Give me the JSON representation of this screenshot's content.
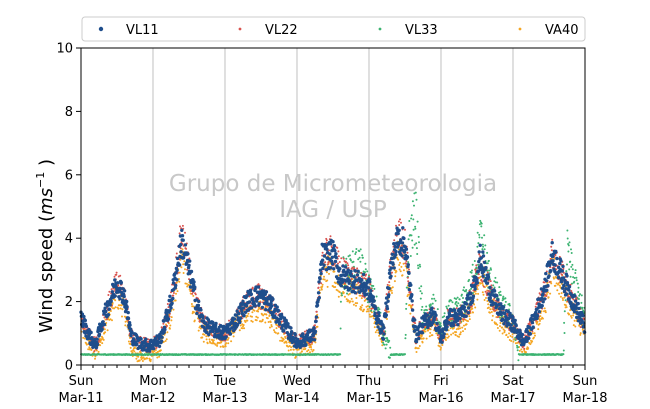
{
  "chart_data": {
    "type": "scatter",
    "title": "",
    "ylabel_main": "Wind speed (",
    "ylabel_math": "ms",
    "ylabel_sup": "−1",
    "ylabel_end": " )",
    "ylim": [
      0,
      10
    ],
    "yticks": [
      "0",
      "2",
      "4",
      "6",
      "8",
      "10"
    ],
    "xlim_days": [
      0,
      7
    ],
    "xticks": [
      {
        "day": "Sun",
        "date": "Mar-11"
      },
      {
        "day": "Mon",
        "date": "Mar-12"
      },
      {
        "day": "Tue",
        "date": "Mar-13"
      },
      {
        "day": "Wed",
        "date": "Mar-14"
      },
      {
        "day": "Thu",
        "date": "Mar-15"
      },
      {
        "day": "Fri",
        "date": "Mar-16"
      },
      {
        "day": "Sat",
        "date": "Mar-17"
      },
      {
        "day": "Sun",
        "date": "Mar-18"
      }
    ],
    "grid": "vertical at day boundaries",
    "legend_position": "top",
    "watermark": [
      "Grupo de Micrometeorologia",
      "IAG / USP"
    ],
    "series": [
      {
        "name": "VL11",
        "color": "#1f4e8c",
        "marker_size": "medium",
        "profile": [
          [
            0.0,
            1.5
          ],
          [
            0.12,
            0.9
          ],
          [
            0.2,
            0.6
          ],
          [
            0.3,
            1.4
          ],
          [
            0.4,
            2.0
          ],
          [
            0.5,
            2.6
          ],
          [
            0.6,
            2.2
          ],
          [
            0.7,
            0.9
          ],
          [
            0.8,
            0.7
          ],
          [
            0.95,
            0.6
          ],
          [
            1.1,
            0.8
          ],
          [
            1.25,
            2.0
          ],
          [
            1.4,
            3.9
          ],
          [
            1.5,
            3.0
          ],
          [
            1.6,
            2.0
          ],
          [
            1.7,
            1.3
          ],
          [
            1.85,
            1.1
          ],
          [
            2.0,
            1.0
          ],
          [
            2.15,
            1.4
          ],
          [
            2.3,
            2.0
          ],
          [
            2.45,
            2.2
          ],
          [
            2.6,
            2.0
          ],
          [
            2.75,
            1.5
          ],
          [
            2.9,
            1.0
          ],
          [
            3.0,
            0.7
          ],
          [
            3.1,
            0.8
          ],
          [
            3.25,
            1.0
          ],
          [
            3.35,
            3.4
          ],
          [
            3.5,
            3.5
          ],
          [
            3.6,
            2.8
          ],
          [
            3.75,
            2.7
          ],
          [
            3.85,
            2.6
          ],
          [
            4.0,
            2.4
          ],
          [
            4.1,
            1.6
          ],
          [
            4.2,
            1.0
          ],
          [
            4.3,
            3.0
          ],
          [
            4.4,
            4.0
          ],
          [
            4.5,
            3.8
          ],
          [
            4.65,
            0.9
          ],
          [
            4.75,
            1.3
          ],
          [
            4.9,
            1.6
          ],
          [
            5.0,
            0.8
          ],
          [
            5.1,
            1.5
          ],
          [
            5.25,
            1.5
          ],
          [
            5.4,
            2.0
          ],
          [
            5.55,
            3.4
          ],
          [
            5.7,
            2.2
          ],
          [
            5.85,
            1.6
          ],
          [
            6.0,
            1.3
          ],
          [
            6.15,
            0.7
          ],
          [
            6.3,
            1.5
          ],
          [
            6.45,
            2.5
          ],
          [
            6.55,
            3.5
          ],
          [
            6.65,
            3.0
          ],
          [
            6.8,
            2.2
          ],
          [
            7.0,
            1.2
          ]
        ],
        "spread": 0.35
      },
      {
        "name": "VL22",
        "color": "#d9534f",
        "marker_size": "small",
        "profile": [
          [
            0.0,
            1.5
          ],
          [
            0.12,
            0.9
          ],
          [
            0.2,
            0.6
          ],
          [
            0.3,
            1.4
          ],
          [
            0.4,
            2.0
          ],
          [
            0.5,
            2.6
          ],
          [
            0.6,
            2.2
          ],
          [
            0.7,
            0.9
          ],
          [
            0.8,
            0.7
          ],
          [
            0.95,
            0.6
          ],
          [
            1.1,
            0.8
          ],
          [
            1.25,
            2.0
          ],
          [
            1.4,
            4.2
          ],
          [
            1.5,
            3.0
          ],
          [
            1.6,
            2.0
          ],
          [
            1.7,
            1.3
          ],
          [
            1.85,
            1.1
          ],
          [
            2.0,
            1.0
          ],
          [
            2.15,
            1.4
          ],
          [
            2.3,
            2.0
          ],
          [
            2.45,
            2.2
          ],
          [
            2.6,
            2.0
          ],
          [
            2.75,
            1.5
          ],
          [
            2.9,
            1.0
          ],
          [
            3.0,
            0.7
          ],
          [
            3.1,
            0.8
          ],
          [
            3.25,
            1.0
          ],
          [
            3.35,
            3.4
          ],
          [
            3.5,
            3.6
          ],
          [
            3.6,
            3.0
          ],
          [
            3.75,
            2.8
          ],
          [
            3.85,
            2.6
          ],
          [
            4.0,
            2.4
          ],
          [
            4.1,
            1.6
          ],
          [
            4.2,
            1.0
          ],
          [
            4.3,
            3.0
          ],
          [
            4.4,
            4.2
          ],
          [
            4.5,
            3.8
          ],
          [
            4.65,
            0.9
          ],
          [
            4.75,
            1.3
          ],
          [
            4.9,
            1.6
          ],
          [
            5.0,
            0.8
          ],
          [
            5.1,
            1.5
          ],
          [
            5.25,
            1.5
          ],
          [
            5.4,
            2.0
          ],
          [
            5.55,
            3.2
          ],
          [
            5.7,
            2.2
          ],
          [
            5.85,
            1.6
          ],
          [
            6.0,
            1.3
          ],
          [
            6.15,
            0.7
          ],
          [
            6.3,
            1.5
          ],
          [
            6.45,
            2.4
          ],
          [
            6.55,
            3.5
          ],
          [
            6.65,
            3.0
          ],
          [
            6.8,
            2.2
          ],
          [
            7.0,
            1.2
          ]
        ],
        "spread": 0.4
      },
      {
        "name": "VL33",
        "color": "#3cb371",
        "marker_size": "small",
        "profile": [
          [
            0.0,
            0.35
          ],
          [
            3.6,
            0.35
          ],
          [
            3.62,
            2.8
          ],
          [
            3.75,
            2.9
          ],
          [
            3.85,
            3.2
          ],
          [
            4.0,
            2.4
          ],
          [
            4.1,
            1.8
          ],
          [
            4.2,
            1.0
          ],
          [
            4.3,
            0.35
          ],
          [
            4.5,
            0.35
          ],
          [
            4.55,
            3.8
          ],
          [
            4.65,
            4.8
          ],
          [
            4.75,
            1.3
          ],
          [
            4.9,
            1.8
          ],
          [
            5.0,
            1.0
          ],
          [
            5.1,
            1.6
          ],
          [
            5.25,
            1.7
          ],
          [
            5.4,
            2.3
          ],
          [
            5.55,
            4.0
          ],
          [
            5.7,
            2.5
          ],
          [
            5.85,
            1.8
          ],
          [
            6.0,
            1.4
          ],
          [
            6.08,
            0.35
          ],
          [
            6.7,
            0.35
          ],
          [
            6.75,
            3.6
          ],
          [
            6.85,
            2.6
          ],
          [
            7.0,
            1.4
          ]
        ],
        "spread": 0.55
      },
      {
        "name": "VA40",
        "color": "#f5a623",
        "marker_size": "small",
        "profile": [
          [
            0.0,
            1.2
          ],
          [
            0.12,
            0.6
          ],
          [
            0.2,
            0.3
          ],
          [
            0.3,
            1.0
          ],
          [
            0.4,
            1.6
          ],
          [
            0.5,
            2.2
          ],
          [
            0.6,
            1.8
          ],
          [
            0.7,
            0.5
          ],
          [
            0.8,
            0.3
          ],
          [
            0.95,
            0.3
          ],
          [
            1.1,
            0.5
          ],
          [
            1.25,
            1.5
          ],
          [
            1.4,
            3.6
          ],
          [
            1.5,
            2.5
          ],
          [
            1.6,
            1.5
          ],
          [
            1.7,
            1.0
          ],
          [
            1.85,
            0.9
          ],
          [
            2.0,
            0.8
          ],
          [
            2.15,
            1.2
          ],
          [
            2.3,
            1.6
          ],
          [
            2.45,
            1.8
          ],
          [
            2.6,
            1.6
          ],
          [
            2.75,
            1.1
          ],
          [
            2.9,
            0.6
          ],
          [
            3.0,
            0.4
          ],
          [
            3.1,
            0.5
          ],
          [
            3.25,
            0.7
          ],
          [
            3.35,
            2.9
          ],
          [
            3.5,
            3.0
          ],
          [
            3.6,
            2.5
          ],
          [
            3.75,
            2.4
          ],
          [
            3.85,
            2.2
          ],
          [
            4.0,
            2.0
          ],
          [
            4.1,
            1.3
          ],
          [
            4.2,
            0.8
          ],
          [
            4.3,
            2.5
          ],
          [
            4.4,
            3.6
          ],
          [
            4.5,
            3.2
          ],
          [
            4.65,
            0.6
          ],
          [
            4.75,
            1.0
          ],
          [
            4.9,
            1.3
          ],
          [
            5.0,
            0.6
          ],
          [
            5.1,
            1.2
          ],
          [
            5.25,
            1.2
          ],
          [
            5.4,
            1.6
          ],
          [
            5.55,
            2.8
          ],
          [
            5.7,
            1.8
          ],
          [
            5.85,
            1.3
          ],
          [
            6.0,
            1.0
          ],
          [
            6.15,
            0.5
          ],
          [
            6.3,
            1.2
          ],
          [
            6.45,
            2.0
          ],
          [
            6.55,
            3.0
          ],
          [
            6.65,
            2.6
          ],
          [
            6.8,
            1.8
          ],
          [
            7.0,
            1.0
          ]
        ],
        "spread": 0.45
      }
    ]
  }
}
